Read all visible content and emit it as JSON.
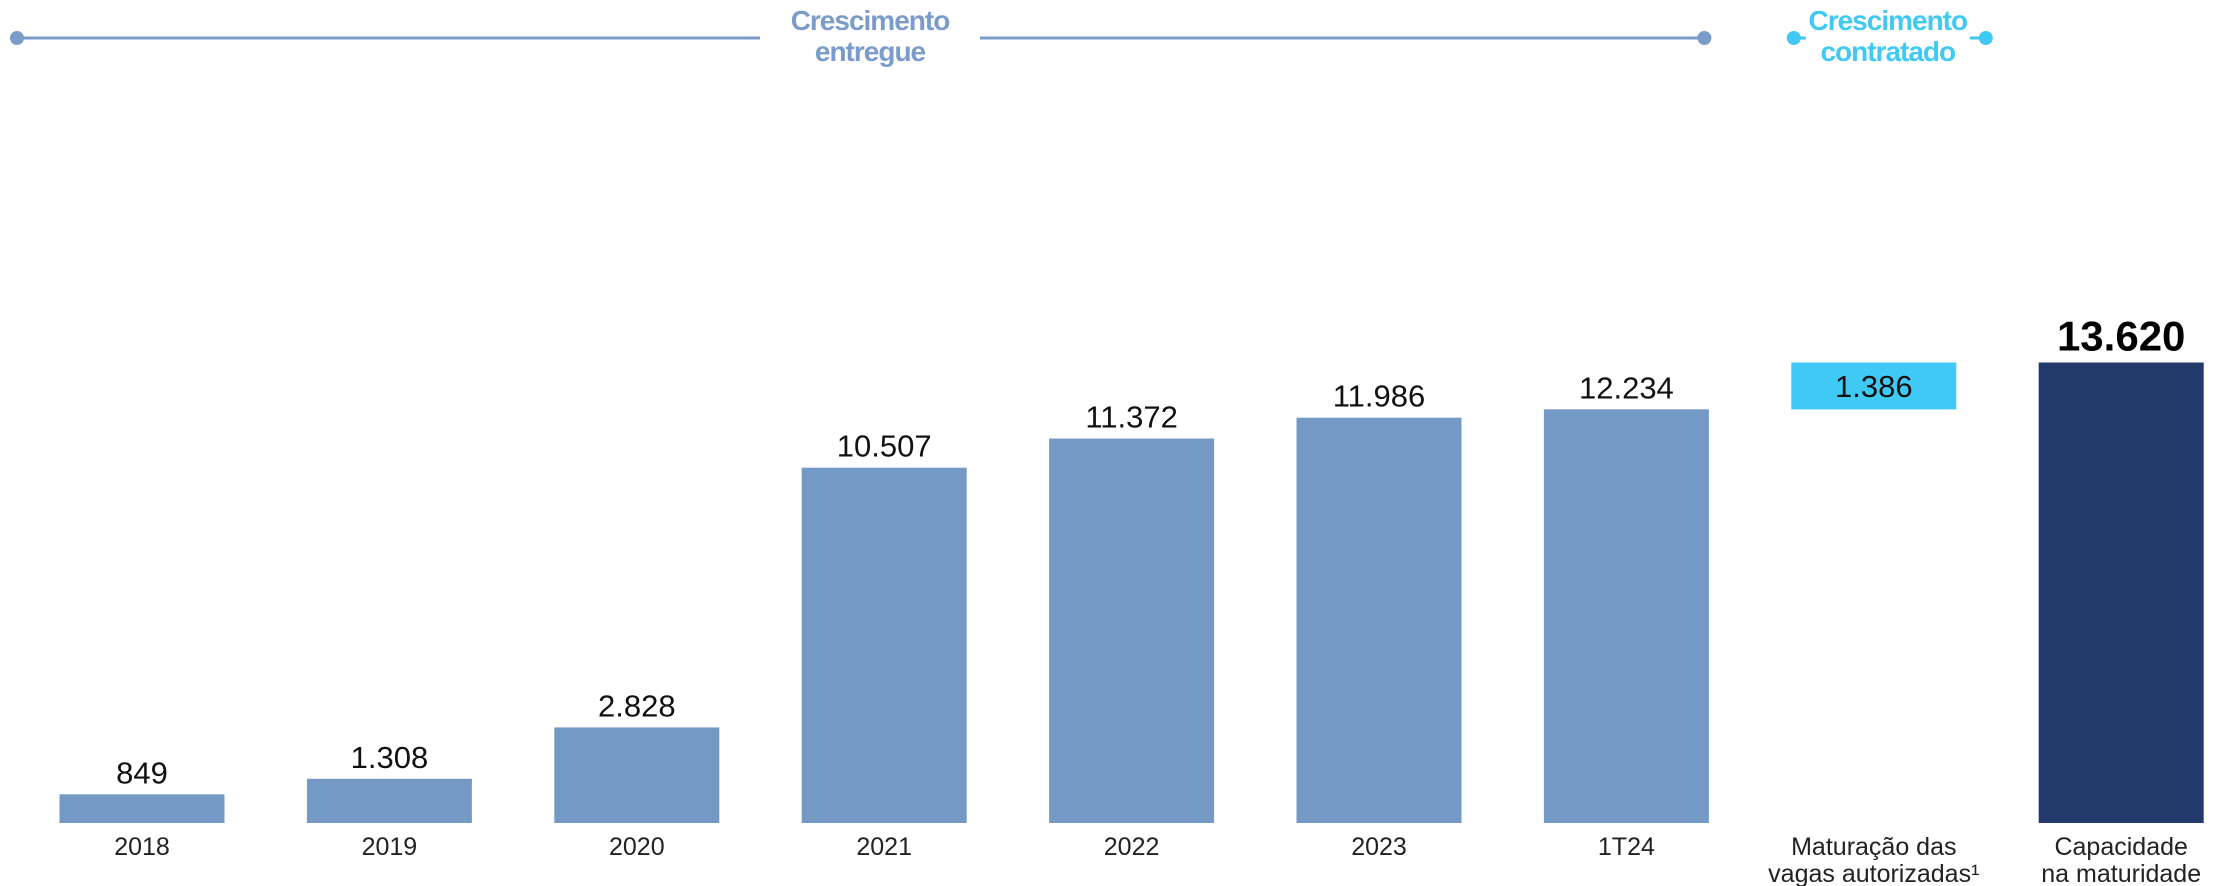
{
  "chart_data": {
    "type": "bar",
    "subtype": "waterfall",
    "title": "",
    "xlabel": "",
    "ylabel": "",
    "ylim": [
      0,
      16000
    ],
    "grid": false,
    "legend": "none",
    "categories": [
      "2018",
      "2019",
      "2020",
      "2021",
      "2022",
      "2023",
      "1T24",
      "Maturação das vagas autorizadas¹",
      "Capacidade na maturidade"
    ],
    "category_lines": [
      [
        "2018"
      ],
      [
        "2019"
      ],
      [
        "2020"
      ],
      [
        "2021"
      ],
      [
        "2022"
      ],
      [
        "2023"
      ],
      [
        "1T24"
      ],
      [
        "Maturação das",
        "vagas autorizadas¹"
      ],
      [
        "Capacidade",
        "na maturidade"
      ]
    ],
    "bars": [
      {
        "category": "2018",
        "value": 849,
        "base": 0,
        "label": "849",
        "kind": "delivered",
        "color": "#7599C5"
      },
      {
        "category": "2019",
        "value": 1308,
        "base": 0,
        "label": "1.308",
        "kind": "delivered",
        "color": "#7599C5"
      },
      {
        "category": "2020",
        "value": 2828,
        "base": 0,
        "label": "2.828",
        "kind": "delivered",
        "color": "#7599C5"
      },
      {
        "category": "2021",
        "value": 10507,
        "base": 0,
        "label": "10.507",
        "kind": "delivered",
        "color": "#7599C5"
      },
      {
        "category": "2022",
        "value": 11372,
        "base": 0,
        "label": "11.372",
        "kind": "delivered",
        "color": "#7599C5"
      },
      {
        "category": "2023",
        "value": 11986,
        "base": 0,
        "label": "11.986",
        "kind": "delivered",
        "color": "#7599C5"
      },
      {
        "category": "1T24",
        "value": 12234,
        "base": 0,
        "label": "12.234",
        "kind": "delivered",
        "color": "#7599C5"
      },
      {
        "category": "Maturação das vagas autorizadas¹",
        "value": 1386,
        "base": 12234,
        "label": "1.386",
        "kind": "contracted",
        "color": "#41C9F5"
      },
      {
        "category": "Capacidade na maturidade",
        "value": 13620,
        "base": 0,
        "label": "13.620",
        "kind": "total",
        "color": "#223A6A"
      }
    ],
    "sections": [
      {
        "lines": [
          "Crescimento",
          "entregue"
        ],
        "from_index": 0,
        "to_index": 6,
        "color": "#7B9CCB"
      },
      {
        "lines": [
          "Crescimento",
          "contratado"
        ],
        "from_index": 7,
        "to_index": 7,
        "color": "#41C9F5"
      }
    ]
  }
}
